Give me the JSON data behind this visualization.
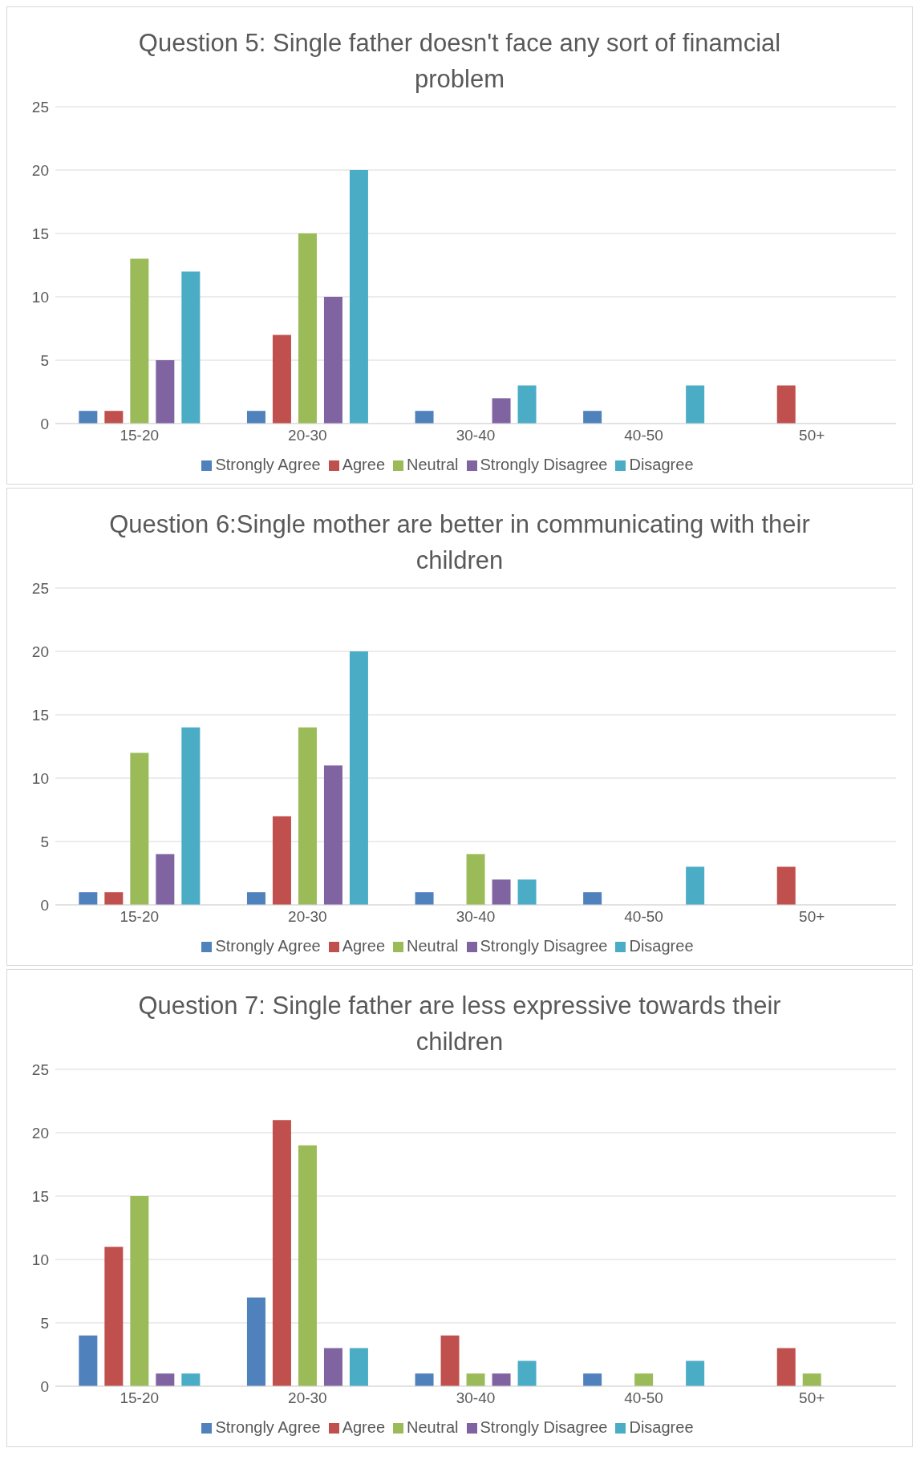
{
  "chart_data": [
    {
      "type": "bar",
      "title": "Question 5: Single father doesn't face any sort of finamcial problem",
      "categories": [
        "15-20",
        "20-30",
        "30-40",
        "40-50",
        "50+"
      ],
      "series": [
        {
          "name": "Strongly Agree",
          "color": "#4f81bd",
          "values": [
            1,
            1,
            1,
            1,
            null
          ]
        },
        {
          "name": "Agree",
          "color": "#c0504d",
          "values": [
            1,
            7,
            null,
            null,
            3
          ]
        },
        {
          "name": "Neutral",
          "color": "#9bbb59",
          "values": [
            13,
            15,
            null,
            null,
            null
          ]
        },
        {
          "name": "Strongly Disagree",
          "color": "#8064a2",
          "values": [
            5,
            10,
            2,
            null,
            null
          ]
        },
        {
          "name": "Disagree",
          "color": "#4bacc6",
          "values": [
            12,
            20,
            3,
            3,
            null
          ]
        }
      ],
      "ylim": [
        0,
        25
      ],
      "yticks": [
        0,
        5,
        10,
        15,
        20,
        25
      ],
      "grid": "y",
      "legend": "bottom"
    },
    {
      "type": "bar",
      "title": "Question 6:Single mother are better in communicating with their children",
      "categories": [
        "15-20",
        "20-30",
        "30-40",
        "40-50",
        "50+"
      ],
      "series": [
        {
          "name": "Strongly Agree",
          "color": "#4f81bd",
          "values": [
            1,
            1,
            1,
            1,
            null
          ]
        },
        {
          "name": "Agree",
          "color": "#c0504d",
          "values": [
            1,
            7,
            null,
            null,
            3
          ]
        },
        {
          "name": "Neutral",
          "color": "#9bbb59",
          "values": [
            12,
            14,
            4,
            null,
            null
          ]
        },
        {
          "name": "Strongly Disagree",
          "color": "#8064a2",
          "values": [
            4,
            11,
            2,
            null,
            null
          ]
        },
        {
          "name": "Disagree",
          "color": "#4bacc6",
          "values": [
            14,
            20,
            2,
            3,
            null
          ]
        }
      ],
      "ylim": [
        0,
        25
      ],
      "yticks": [
        0,
        5,
        10,
        15,
        20,
        25
      ],
      "grid": "y",
      "legend": "bottom"
    },
    {
      "type": "bar",
      "title": "Question 7: Single father are less expressive towards their children",
      "categories": [
        "15-20",
        "20-30",
        "30-40",
        "40-50",
        "50+"
      ],
      "series": [
        {
          "name": "Strongly Agree",
          "color": "#4f81bd",
          "values": [
            4,
            7,
            1,
            1,
            null
          ]
        },
        {
          "name": "Agree",
          "color": "#c0504d",
          "values": [
            11,
            21,
            4,
            null,
            3
          ]
        },
        {
          "name": "Neutral",
          "color": "#9bbb59",
          "values": [
            15,
            19,
            1,
            1,
            1
          ]
        },
        {
          "name": "Strongly Disagree",
          "color": "#8064a2",
          "values": [
            1,
            3,
            1,
            null,
            null
          ]
        },
        {
          "name": "Disagree",
          "color": "#4bacc6",
          "values": [
            1,
            3,
            2,
            2,
            null
          ]
        }
      ],
      "ylim": [
        0,
        25
      ],
      "yticks": [
        0,
        5,
        10,
        15,
        20,
        25
      ],
      "grid": "y",
      "legend": "bottom"
    }
  ]
}
